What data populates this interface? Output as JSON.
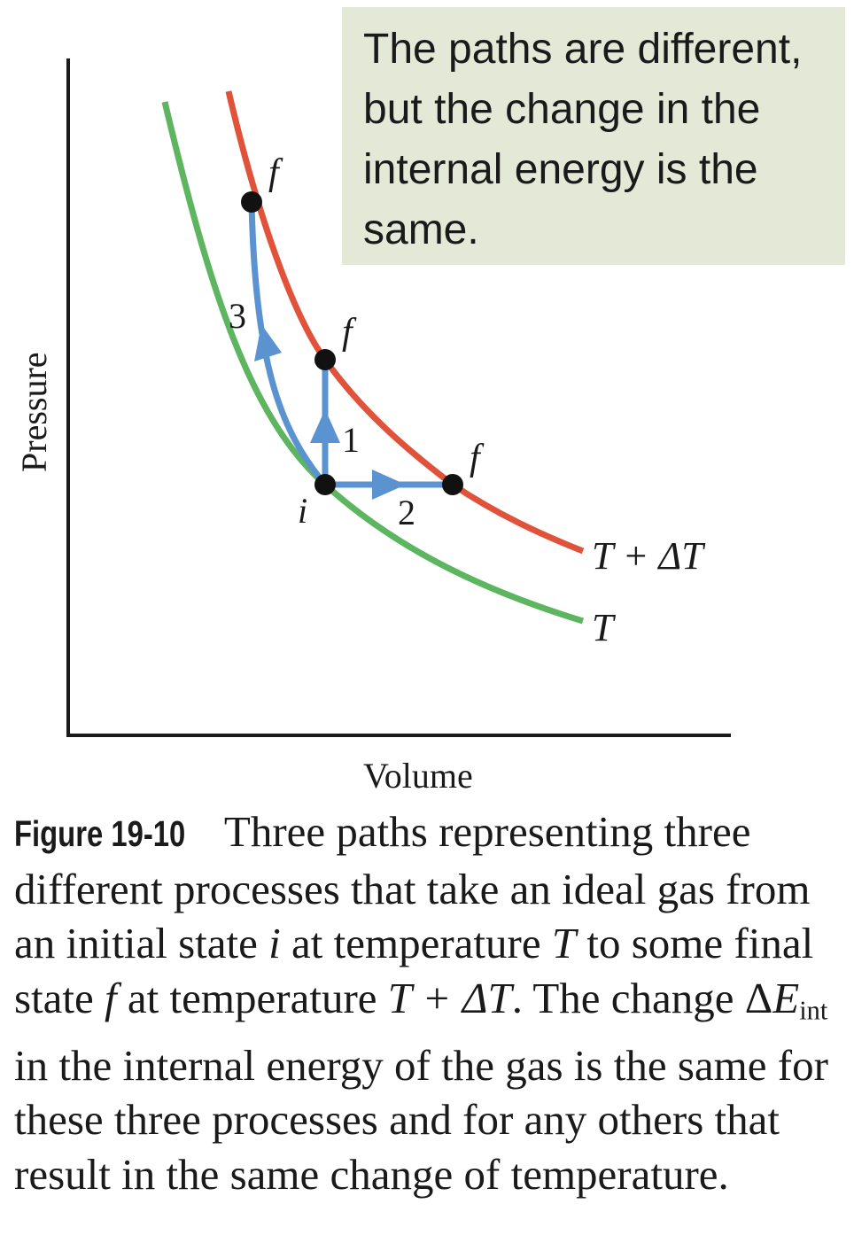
{
  "callout": {
    "lines": [
      "The paths are different,",
      "but the change in the",
      "internal energy is the",
      "same."
    ]
  },
  "axes": {
    "ylabel": "Pressure",
    "xlabel": "Volume"
  },
  "curves": {
    "lower": {
      "label": "T",
      "color": "#5db55f"
    },
    "upper": {
      "label": "T + ΔT",
      "color": "#e0533a"
    }
  },
  "paths": {
    "color": "#5b93d1",
    "labels": [
      "1",
      "2",
      "3"
    ]
  },
  "points": {
    "initial": "i",
    "final_1": "f",
    "final_2": "f",
    "final_3": "f"
  },
  "caption": {
    "label": "Figure 19-10",
    "p1": " Three paths representing three different processes that take an ideal gas from an initial state ",
    "i": "i",
    "p2": " at temperature ",
    "T1": "T",
    "p3": " to some final state ",
    "f": "f",
    "p4": " at temperature ",
    "T2": "T + ΔT",
    "p5": ". The change Δ",
    "E": "E",
    "sub": "int",
    "p6": " in the internal energy of the gas is the same for these three processes and for any others that result in the same change of temperature."
  }
}
